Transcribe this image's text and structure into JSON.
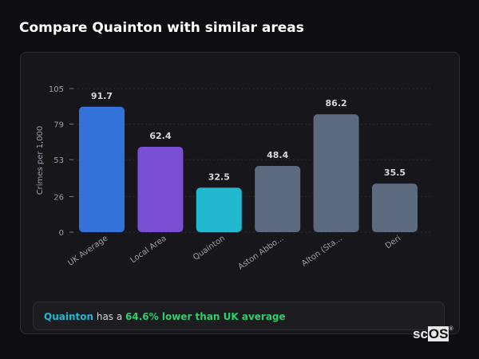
{
  "title": "Compare Quainton with similar areas",
  "chart_data": {
    "type": "bar",
    "ylabel": "Crimes per 1,000",
    "ylim": [
      0,
      105
    ],
    "yticks": [
      0,
      26,
      53,
      79,
      105
    ],
    "grid": true,
    "categories": [
      "UK Average",
      "Local Area",
      "Quainton",
      "Aston Abbo...",
      "Alton (Sta...",
      "Deri"
    ],
    "values": [
      91.7,
      62.4,
      32.5,
      48.4,
      86.2,
      35.5
    ],
    "data_labels": [
      "91.7",
      "62.4",
      "32.5",
      "48.4",
      "86.2",
      "35.5"
    ],
    "colors": [
      "#3373d9",
      "#7a4fd4",
      "#22b8cf",
      "#5c6a7f",
      "#5c6a7f",
      "#5c6a7f"
    ]
  },
  "summary": {
    "area": "Quainton",
    "middle": " has a ",
    "highlight": "64.6% lower than UK average",
    "area_color": "#22b8cf",
    "highlight_color": "#2fcf6a"
  },
  "logo": {
    "text_a": "sc",
    "text_b": "OS",
    "mark": "®"
  }
}
